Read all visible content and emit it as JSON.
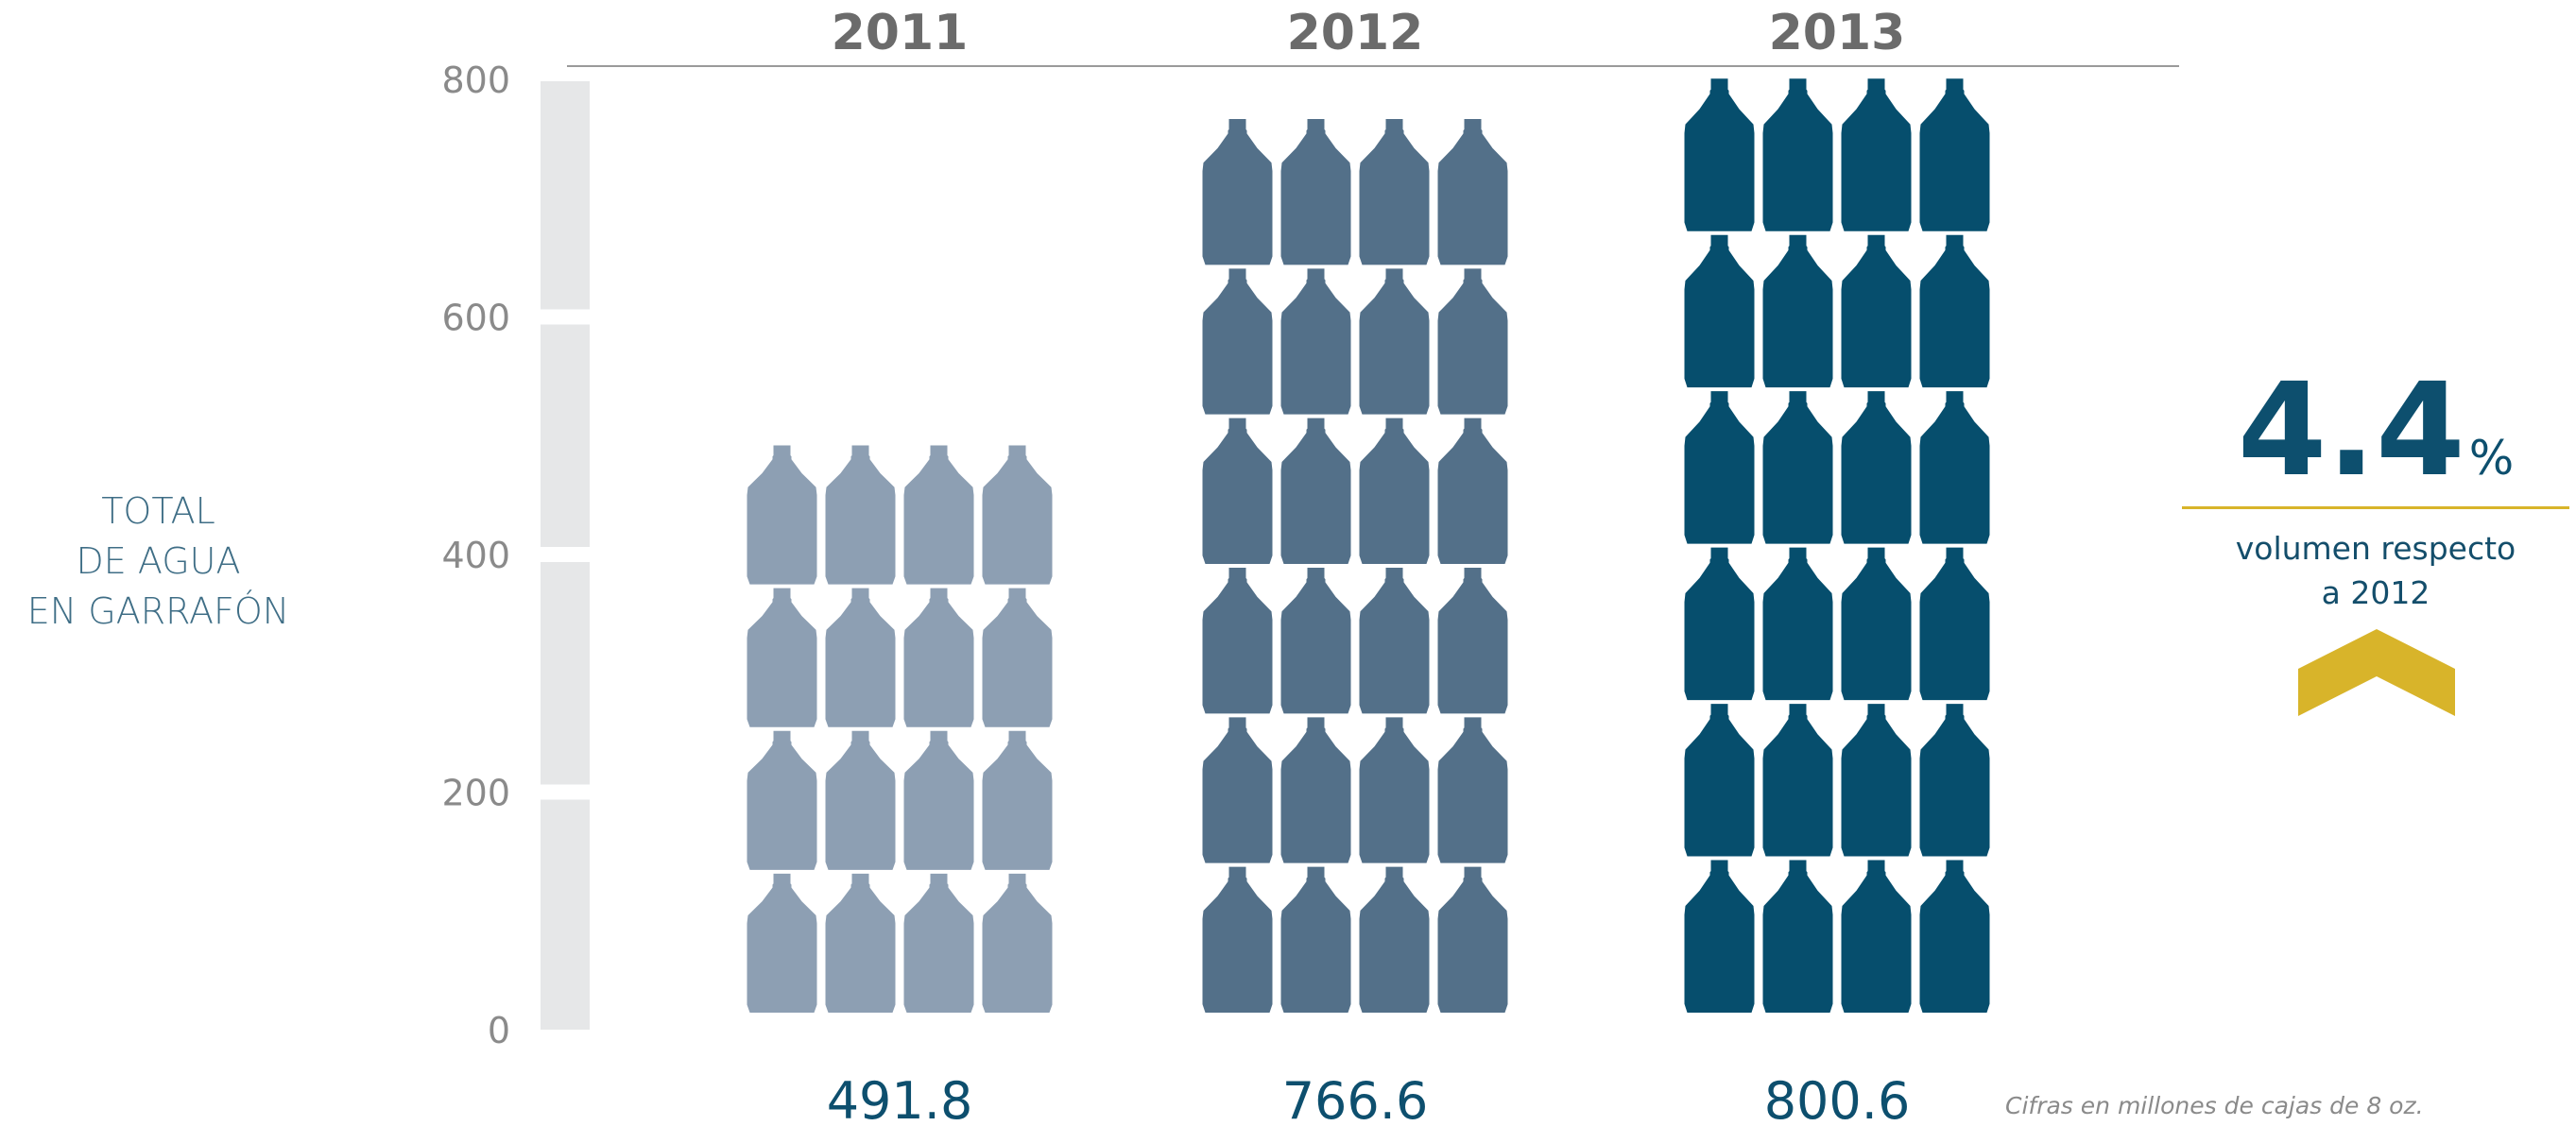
{
  "chart_data": {
    "type": "bar",
    "categories": [
      "2011",
      "2012",
      "2013"
    ],
    "values": [
      491.8,
      766.6,
      800.6
    ],
    "value_labels": [
      "491.8",
      "766.6",
      "800.6"
    ],
    "title": "",
    "xlabel": "",
    "ylabel_lines": [
      "TOTAL",
      "DE AGUA",
      "EN GARRAFÓN"
    ],
    "ylim": [
      0,
      800
    ],
    "yticks": [
      0,
      200,
      400,
      600,
      800
    ],
    "grid": false,
    "marks": "pictogram-bottles",
    "bottles_per_row": 4,
    "bottle_rows": [
      4,
      6,
      6
    ],
    "colors": {
      "2011": "#8d9fb3",
      "2012": "#537089",
      "2013": "#064e6d",
      "axis_text": "#8a8a8a",
      "year_text": "#6b6b6b",
      "value_text": "#0d4f6e",
      "accent": "#d8b42a",
      "scale_bar": "#e6e7e8"
    }
  },
  "callout": {
    "value": "4.4",
    "unit": "%",
    "desc_line1": "volumen respecto",
    "desc_line2": "a 2012",
    "direction": "up",
    "arrow_icon": "chevron-up-icon"
  },
  "note": "Cifras en millones de cajas de 8 oz."
}
